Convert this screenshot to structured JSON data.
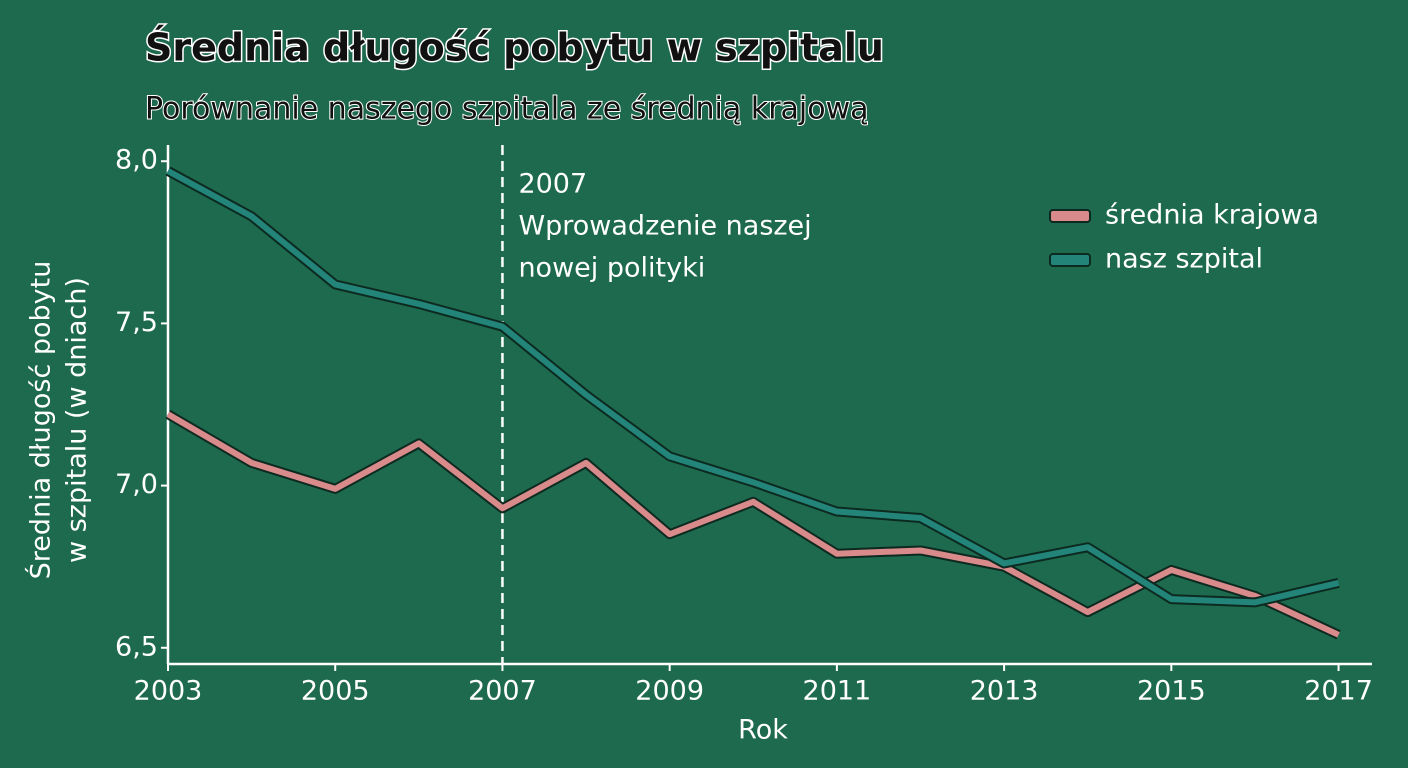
{
  "chart_data": {
    "type": "line",
    "title": "Średnia długość pobytu w szpitalu",
    "subtitle": "Porównanie naszego szpitala ze średnią krajową",
    "x_label": "Rok",
    "y_label": [
      "Średnia długość pobytu",
      "w szpitalu (w dniach)"
    ],
    "x": [
      2003,
      2004,
      2005,
      2006,
      2007,
      2008,
      2009,
      2010,
      2011,
      2012,
      2013,
      2014,
      2015,
      2016,
      2017
    ],
    "series": [
      {
        "name": "średnia krajowa",
        "color": "#d98a8a",
        "values": [
          7.22,
          7.07,
          6.99,
          7.13,
          6.93,
          7.07,
          6.85,
          6.95,
          6.79,
          6.8,
          6.75,
          6.61,
          6.74,
          6.66,
          6.54
        ]
      },
      {
        "name": "nasz szpital",
        "color": "#23857a",
        "values": [
          7.97,
          7.83,
          7.62,
          7.56,
          7.49,
          7.28,
          7.09,
          7.01,
          6.92,
          6.9,
          6.76,
          6.81,
          6.65,
          6.64,
          6.7
        ]
      }
    ],
    "xlim": [
      2003,
      2017.4
    ],
    "ylim": [
      6.45,
      8.05
    ],
    "xticks": [
      2003,
      2005,
      2007,
      2009,
      2011,
      2013,
      2015,
      2017
    ],
    "yticks": [
      {
        "value": 6.5,
        "label": "6,5"
      },
      {
        "value": 7,
        "label": "7,0"
      },
      {
        "value": 7.5,
        "label": "7,5"
      },
      {
        "value": 8,
        "label": "8,0"
      }
    ],
    "annotation": {
      "x": 2007,
      "lines": [
        "2007",
        "Wprowadzenie naszej",
        "nowej polityki"
      ]
    },
    "legend": "top-right",
    "grid": false
  }
}
